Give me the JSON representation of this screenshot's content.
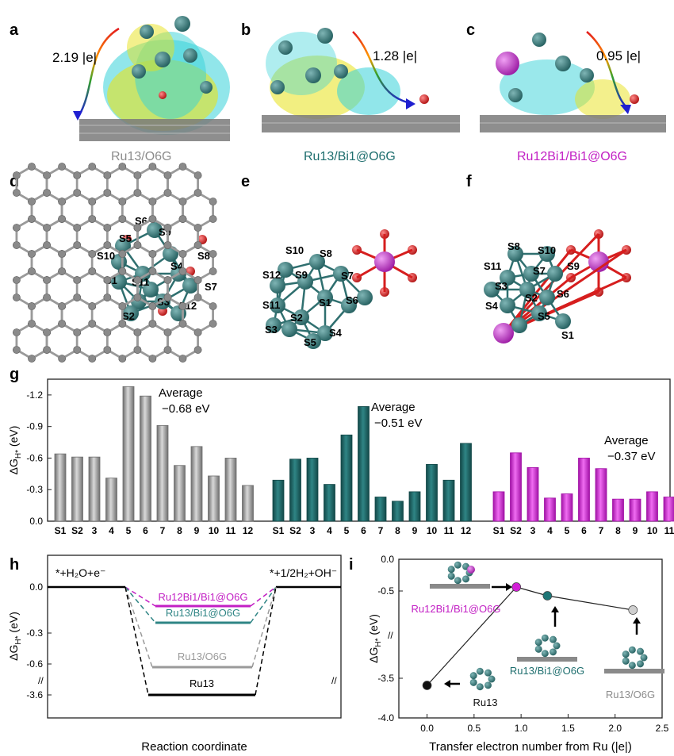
{
  "panels": {
    "a": {
      "label": "a",
      "transfer": "2.19 |e|",
      "name": "Ru13/O6G"
    },
    "b": {
      "label": "b",
      "transfer": "1.28 |e|",
      "name": "Ru13/Bi1@O6G"
    },
    "c": {
      "label": "c",
      "transfer": "0.95 |e|",
      "name": "Ru12Bi1/Bi1@O6G"
    },
    "d": {
      "label": "d",
      "sites": [
        "S6",
        "S9",
        "S5",
        "S8",
        "S10",
        "S4",
        "S1",
        "S11",
        "S7",
        "S3",
        "S12",
        "S2"
      ]
    },
    "e": {
      "label": "e",
      "sites": [
        "S10",
        "S8",
        "S9",
        "S12",
        "S7",
        "S1",
        "S6",
        "S11",
        "S2",
        "S3",
        "S5",
        "S4"
      ]
    },
    "f": {
      "label": "f",
      "sites": [
        "S8",
        "S10",
        "S11",
        "S7",
        "S9",
        "S3",
        "S2",
        "S6",
        "S4",
        "S5",
        "S1"
      ]
    },
    "g": {
      "label": "g"
    },
    "h": {
      "label": "h"
    },
    "i": {
      "label": "i"
    }
  },
  "colors": {
    "ru_atom": "#2f7c7c",
    "bi_atom": "#c03cc8",
    "o_atom": "#d61e1e",
    "c_atom": "#8a8a8a",
    "grey": "#8c8c8c",
    "teal": "#1e6e6e",
    "magenta": "#c21fc4",
    "cyan_density": "#36d1d8",
    "yellow_density": "#e8e21a"
  },
  "chart_data": [
    {
      "type": "bar",
      "panel": "g",
      "ylabel": "ΔG_H* (eV)",
      "ylim": [
        0,
        -1.35
      ],
      "yticks": [
        "0.0",
        "-0.3",
        "-0.6",
        "-0.9",
        "-1.2"
      ],
      "series": [
        {
          "name": "Ru13/O6G",
          "categories": [
            "S1",
            "S2",
            "3",
            "4",
            "5",
            "6",
            "7",
            "8",
            "9",
            "10",
            "11",
            "12"
          ],
          "values": [
            -0.64,
            -0.61,
            -0.61,
            -0.41,
            -1.28,
            -1.19,
            -0.91,
            -0.53,
            -0.71,
            -0.43,
            -0.6,
            -0.34
          ],
          "average_label": [
            "Average",
            "−0.68 eV"
          ]
        },
        {
          "name": "Ru13/Bi1@O6G",
          "categories": [
            "S1",
            "S2",
            "3",
            "4",
            "5",
            "6",
            "7",
            "8",
            "9",
            "10",
            "11",
            "12"
          ],
          "values": [
            -0.39,
            -0.59,
            -0.6,
            -0.35,
            -0.82,
            -1.09,
            -0.23,
            -0.19,
            -0.28,
            -0.54,
            -0.39,
            -0.74
          ],
          "average_label": [
            "Average",
            "−0.51 eV"
          ]
        },
        {
          "name": "Ru12Bi1/Bi1@O6G",
          "categories": [
            "S1",
            "S2",
            "3",
            "4",
            "5",
            "6",
            "7",
            "8",
            "9",
            "10",
            "11"
          ],
          "values": [
            -0.28,
            -0.65,
            -0.51,
            -0.22,
            -0.26,
            -0.6,
            -0.5,
            -0.21,
            -0.21,
            -0.28,
            -0.23
          ],
          "average_label": [
            "Average",
            "−0.37 eV"
          ]
        }
      ]
    },
    {
      "type": "line",
      "panel": "h",
      "xlabel": "Reaction coordinate",
      "ylabel": "ΔG_H* (eV)",
      "yticks": [
        "0.0",
        "-0.3",
        "-0.6",
        "-3.6"
      ],
      "start_label": "*+H₂O+e⁻",
      "end_label": "*+1/2H₂+OH⁻",
      "series": [
        {
          "name": "Ru12Bi1/Bi1@O6G",
          "value": -0.37
        },
        {
          "name": "Ru13/Bi1@O6G",
          "value": -0.51
        },
        {
          "name": "Ru13/O6G",
          "value": -0.68
        },
        {
          "name": "Ru13",
          "value": -3.6
        }
      ]
    },
    {
      "type": "scatter",
      "panel": "i",
      "xlabel": "Transfer electron number from Ru (|e|)",
      "ylabel": "ΔG_H* (eV)",
      "xlim": [
        -0.3,
        2.5
      ],
      "xticks": [
        "0.0",
        "0.5",
        "1.0",
        "1.5",
        "2.0",
        "2.5"
      ],
      "yticks": [
        "0.0",
        "-0.5",
        "-3.5",
        "-4.0"
      ],
      "points": [
        {
          "name": "Ru13",
          "x": 0.0,
          "y": -3.6
        },
        {
          "name": "Ru12Bi1/Bi1@O6G",
          "x": 0.95,
          "y": -0.37
        },
        {
          "name": "Ru13/Bi1@O6G",
          "x": 1.28,
          "y": -0.51
        },
        {
          "name": "Ru13/O6G",
          "x": 2.19,
          "y": -0.68
        }
      ]
    }
  ]
}
